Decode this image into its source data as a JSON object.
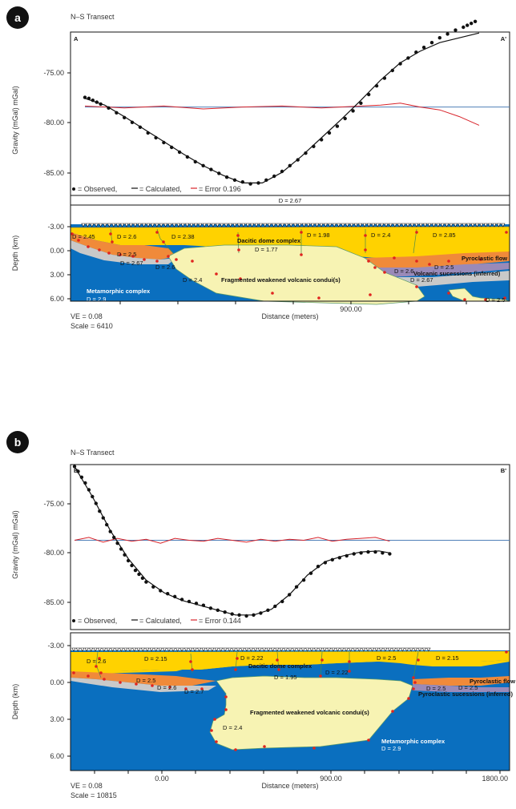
{
  "chart_data": [
    {
      "type": "scatter",
      "panel_label": "a",
      "title": "N–S Transect",
      "start_label": "A",
      "end_label": "A'",
      "gravity": {
        "ylabel": "Gravity (mGal) mGal)",
        "yticks": [
          "-75.00",
          "-80.00",
          "-85.00"
        ],
        "ylim": [
          -88.5,
          -71.5
        ],
        "observed": {
          "x": [
            0.0,
            0.01,
            0.02,
            0.03,
            0.04,
            0.06,
            0.08,
            0.1,
            0.12,
            0.14,
            0.16,
            0.18,
            0.2,
            0.22,
            0.24,
            0.26,
            0.28,
            0.3,
            0.32,
            0.34,
            0.36,
            0.38,
            0.4,
            0.42,
            0.44,
            0.46,
            0.48,
            0.5,
            0.52,
            0.54,
            0.56,
            0.58,
            0.6,
            0.62,
            0.64,
            0.66,
            0.68,
            0.7,
            0.72,
            0.74,
            0.76,
            0.78,
            0.8,
            0.82,
            0.84,
            0.86,
            0.88,
            0.9,
            0.92,
            0.94,
            0.96,
            0.97,
            0.98,
            0.99
          ],
          "y": [
            -78.3,
            -78.4,
            -78.6,
            -78.8,
            -79.0,
            -79.4,
            -79.9,
            -80.4,
            -80.9,
            -81.4,
            -82.0,
            -82.5,
            -83.0,
            -83.5,
            -84.0,
            -84.5,
            -85.0,
            -85.4,
            -85.8,
            -86.2,
            -86.6,
            -86.9,
            -87.1,
            -87.3,
            -87.2,
            -86.9,
            -86.5,
            -86.0,
            -85.4,
            -84.8,
            -84.1,
            -83.4,
            -82.7,
            -82.0,
            -81.3,
            -80.5,
            -79.7,
            -78.9,
            -78.0,
            -77.1,
            -76.3,
            -75.5,
            -74.8,
            -74.2,
            -73.6,
            -73.1,
            -72.6,
            -72.1,
            -71.7,
            -71.3,
            -71.0,
            -70.8,
            -70.6,
            -70.4
          ]
        },
        "calculated": {
          "x": [
            0.0,
            0.05,
            0.1,
            0.15,
            0.2,
            0.25,
            0.3,
            0.35,
            0.4,
            0.45,
            0.5,
            0.55,
            0.6,
            0.65,
            0.7,
            0.75,
            0.8,
            0.85,
            0.9,
            0.95,
            1.0
          ],
          "y": [
            -78.4,
            -79.1,
            -80.3,
            -81.6,
            -82.9,
            -84.2,
            -85.4,
            -86.4,
            -87.2,
            -87.2,
            -86.1,
            -84.4,
            -82.5,
            -80.6,
            -78.6,
            -76.5,
            -74.7,
            -73.5,
            -72.6,
            -72.1,
            -71.6
          ]
        },
        "error": {
          "x": [
            0.0,
            0.1,
            0.2,
            0.3,
            0.4,
            0.5,
            0.6,
            0.7,
            0.75,
            0.8,
            0.85,
            0.9,
            0.95,
            1.0
          ],
          "y": [
            -79.2,
            -79.4,
            -79.2,
            -79.5,
            -79.3,
            -79.2,
            -79.4,
            -79.2,
            -79.1,
            -78.9,
            -79.3,
            -79.6,
            -80.3,
            -81.2
          ]
        },
        "baseline": -79.3,
        "legend": [
          "= Observed,",
          "= Calculated,",
          "= Error 0.196"
        ]
      },
      "model": {
        "top_density": "D = 2.67",
        "ylabel": "Depth (km)",
        "yticks": [
          "-3.00",
          "0.00",
          "3.00",
          "6.00"
        ],
        "xlabel": "Distance (meters)",
        "xticks": [
          "900.00"
        ],
        "densities": [
          "D = 2.45",
          "D = 2.6",
          "D = 2.38",
          "D = 1.98",
          "D = 2.4",
          "D = 2.85",
          "D = 2.5",
          "D = 2.67",
          "D = 2.6",
          "D = 2.4",
          "D = 2.6",
          "D = 2.5",
          "D = 2.67",
          "D = 2.5",
          "D = 1.77",
          "D = 2.9"
        ],
        "bodies": [
          "Dacitic dome complex",
          "Pyroclastic flow",
          "Volcanic sucessions (inferred)",
          "Fragmented weakened volcanic condui(s)",
          "Metamorphic complex"
        ],
        "colors": {
          "dome": "#ffd200",
          "orange": "#f08a3a",
          "grey": "#c9c9c9",
          "purple": "#9a8ab8",
          "conduit": "#f7f3b3",
          "metamorphic": "#0a6fbf",
          "vertex": "#e0241f"
        },
        "ve": "VE = 0.08",
        "scale": "Scale = 6410"
      }
    },
    {
      "type": "scatter",
      "panel_label": "b",
      "title": "N–S Transect",
      "start_label": "B",
      "end_label": "B'",
      "gravity": {
        "ylabel": "Gravity (mGal) mGal)",
        "yticks": [
          "-75.00",
          "-80.00",
          "-85.00"
        ],
        "ylim": [
          -88.5,
          -71.5
        ],
        "observed": {
          "x": [
            0.0,
            0.01,
            0.02,
            0.03,
            0.04,
            0.05,
            0.06,
            0.07,
            0.08,
            0.09,
            0.1,
            0.11,
            0.12,
            0.13,
            0.14,
            0.15,
            0.16,
            0.17,
            0.18,
            0.19,
            0.2,
            0.22,
            0.24,
            0.26,
            0.28,
            0.3,
            0.32,
            0.34,
            0.36,
            0.38,
            0.4,
            0.42,
            0.44,
            0.46,
            0.48,
            0.5,
            0.52,
            0.54,
            0.56,
            0.58,
            0.6,
            0.62,
            0.64,
            0.66,
            0.68,
            0.7,
            0.72,
            0.74,
            0.76,
            0.78,
            0.8,
            0.82,
            0.84,
            0.86,
            0.88
          ],
          "y": [
            -71.7,
            -72.2,
            -72.8,
            -73.4,
            -74.1,
            -74.8,
            -75.5,
            -76.3,
            -77.0,
            -77.7,
            -78.4,
            -79.0,
            -79.6,
            -80.2,
            -80.8,
            -81.4,
            -81.9,
            -82.4,
            -82.8,
            -83.2,
            -83.6,
            -84.1,
            -84.5,
            -84.8,
            -85.1,
            -85.4,
            -85.6,
            -85.8,
            -86.0,
            -86.3,
            -86.5,
            -86.7,
            -86.9,
            -87.0,
            -87.1,
            -87.0,
            -86.8,
            -86.5,
            -86.1,
            -85.6,
            -84.9,
            -84.1,
            -83.4,
            -82.7,
            -82.0,
            -81.6,
            -81.3,
            -81.1,
            -80.9,
            -80.7,
            -80.6,
            -80.5,
            -80.5,
            -80.6,
            -80.7
          ]
        },
        "calculated": {
          "x": [
            0.0,
            0.05,
            0.1,
            0.15,
            0.2,
            0.25,
            0.3,
            0.35,
            0.4,
            0.45,
            0.5,
            0.55,
            0.6,
            0.65,
            0.7,
            0.75,
            0.8,
            0.85,
            0.88
          ],
          "y": [
            -71.7,
            -74.8,
            -78.3,
            -81.2,
            -83.4,
            -84.7,
            -85.5,
            -86.0,
            -86.5,
            -87.0,
            -87.0,
            -86.4,
            -84.9,
            -82.9,
            -81.5,
            -80.9,
            -80.5,
            -80.4,
            -80.6
          ]
        },
        "error": {
          "x": [
            0.0,
            0.04,
            0.08,
            0.12,
            0.16,
            0.2,
            0.24,
            0.28,
            0.32,
            0.36,
            0.4,
            0.44,
            0.48,
            0.52,
            0.56,
            0.6,
            0.64,
            0.68,
            0.72,
            0.76,
            0.8,
            0.84,
            0.88
          ],
          "y": [
            -79.3,
            -79.0,
            -79.5,
            -79.1,
            -79.4,
            -79.2,
            -79.6,
            -79.1,
            -79.3,
            -79.4,
            -79.1,
            -79.3,
            -79.5,
            -79.2,
            -79.4,
            -79.2,
            -79.3,
            -79.0,
            -79.4,
            -79.2,
            -79.1,
            -79.0,
            -79.4
          ]
        },
        "baseline": -79.3,
        "legend": [
          "= Observed,",
          "= Calculated,",
          "= Error 0.144"
        ]
      },
      "model": {
        "top_density": "",
        "ylabel": "Depth (km)",
        "yticks": [
          "-3.00",
          "0.00",
          "3.00",
          "6.00"
        ],
        "xlabel": "Distance (meters)",
        "xticks": [
          "0.00",
          "900.00",
          "1800.00"
        ],
        "densities": [
          "D = 2.6",
          "D = 2.15",
          "D = 2.22",
          "D = 2.5",
          "D = 2.15",
          "D = 1.95",
          "D = 2.22",
          "D = 2.5",
          "D = 2.6",
          "D = 2.7",
          "D = 2.5",
          "D = 2.5",
          "D = 2.4",
          "D = 2.9"
        ],
        "bodies": [
          "Dacitic dome complex",
          "Pyroclastic flow",
          "Pyroclastic sucessions (inferred)",
          "Fragmented weakened volcanic condui(s)",
          "Metamorphic complex"
        ],
        "colors": {
          "dome": "#ffd200",
          "orange": "#f08a3a",
          "grey": "#c9c9c9",
          "purple": "#9a8ab8",
          "conduit": "#f7f3b3",
          "metamorphic": "#0a6fbf",
          "vertex": "#e0241f"
        },
        "ve": "VE = 0.08",
        "scale": "Scale = 10815"
      }
    }
  ]
}
